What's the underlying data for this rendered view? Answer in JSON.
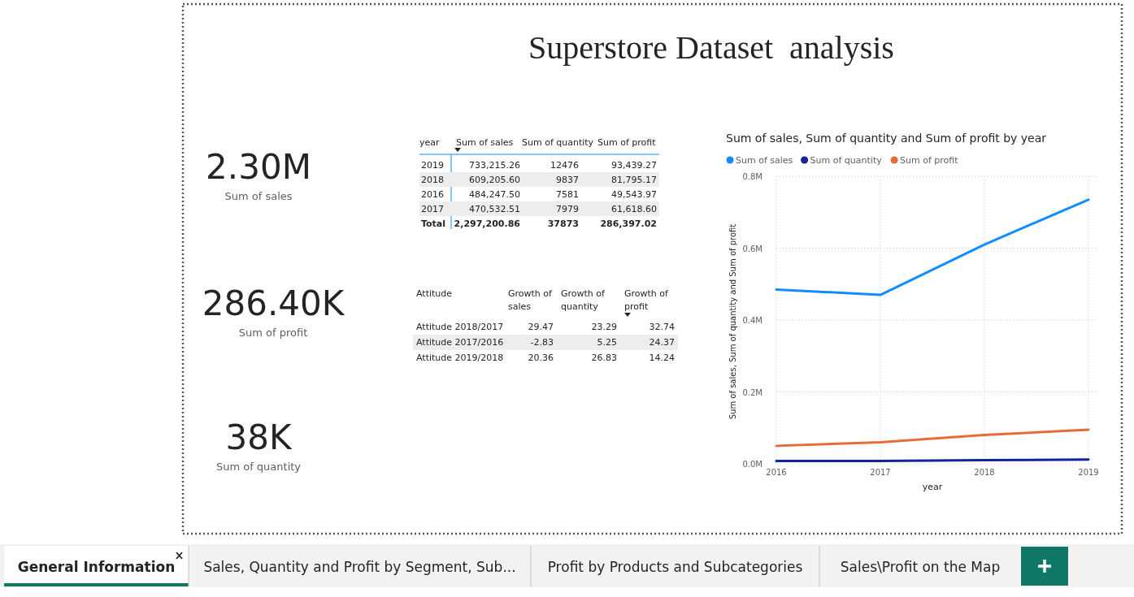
{
  "chart_data": [
    {
      "type": "other",
      "title": "Superstore Dataset  analysis",
      "annotations": [
        "2.30M",
        "Sum of sales",
        "286.40K",
        "Sum of profit",
        "38K",
        "Sum of quantity"
      ]
    },
    {
      "type": "other",
      "ylabel": "year",
      "categories": [
        "Sum of sales",
        "Sum of quantity",
        "Sum of profit"
      ],
      "y_categories": [
        "2019",
        "2018",
        "2016",
        "2017",
        "Total"
      ],
      "cell_labels": [
        [
          "733,215.26",
          "12476",
          "93,439.27"
        ],
        [
          "609,205.60",
          "9837",
          "81,795.17"
        ],
        [
          "484,247.50",
          "7581",
          "49,543.97"
        ],
        [
          "470,532.51",
          "7979",
          "61,618.60"
        ],
        [
          "2,297,200.86",
          "37873",
          "286,397.02"
        ]
      ]
    },
    {
      "type": "other",
      "ylabel": "Attitude",
      "categories": [
        "Growth of sales",
        "Growth of quantity",
        "Growth of profit"
      ],
      "y_categories": [
        "Attitude 2018/2017",
        "Attitude 2017/2016",
        "Attitude 2019/2018"
      ],
      "cell_labels": [
        [
          "29.47",
          "23.29",
          "32.74"
        ],
        [
          "-2.83",
          "5.25",
          "24.37"
        ],
        [
          "20.36",
          "26.83",
          "14.24"
        ]
      ]
    },
    {
      "type": "line",
      "title": "Sum of sales, Sum of quantity and Sum of profit by year",
      "xlabel": "year",
      "ylabel": "Sum of sales, Sum of quantity and Sum of profit",
      "categories": [
        "2016",
        "2017",
        "2018",
        "2019"
      ],
      "series": [
        {
          "name": "Sum of sales",
          "color": "#118dff",
          "values": [
            485000,
            470000,
            610000,
            735000
          ]
        },
        {
          "name": "Sum of quantity",
          "color": "#12239e",
          "values": [
            8000,
            8000,
            10000,
            12000
          ]
        },
        {
          "name": "Sum of profit",
          "color": "#e66c37",
          "values": [
            50000,
            60000,
            80000,
            95000
          ]
        }
      ],
      "ylim": [
        0,
        800000
      ],
      "yticks": [
        {
          "value": 0,
          "label": "0.0M"
        },
        {
          "value": 200000,
          "label": "0.2M"
        },
        {
          "value": 400000,
          "label": "0.4M"
        },
        {
          "value": 600000,
          "label": "0.6M"
        },
        {
          "value": 800000,
          "label": "0.8M"
        }
      ],
      "grid": true,
      "legend": "top left",
      "marker": "none",
      "line_style": "solid"
    },
    {
      "type": "other",
      "annotations": [
        "General Information",
        "Sales, Quantity and Profit by Segment, Sub...",
        "Profit by Products and Subcategories",
        "Sales\\Profit on the Map"
      ]
    }
  ]
}
